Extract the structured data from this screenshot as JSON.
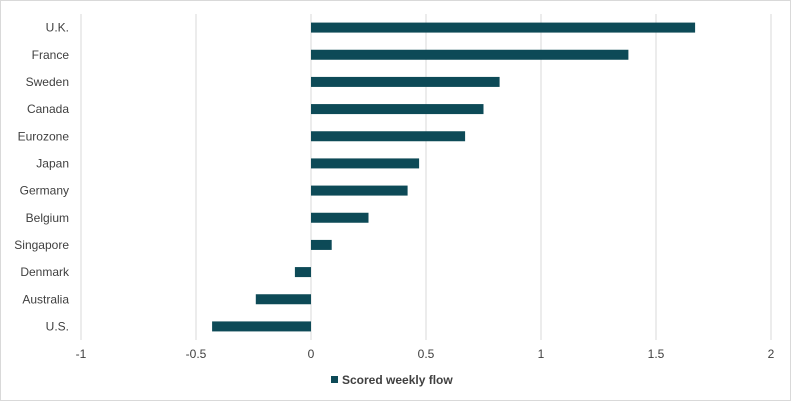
{
  "chart_data": {
    "type": "bar",
    "orientation": "horizontal",
    "categories": [
      "U.K.",
      "France",
      "Sweden",
      "Canada",
      "Eurozone",
      "Japan",
      "Germany",
      "Belgium",
      "Singapore",
      "Denmark",
      "Australia",
      "U.S."
    ],
    "series": [
      {
        "name": "Scored weekly flow",
        "values": [
          1.67,
          1.38,
          0.82,
          0.75,
          0.67,
          0.47,
          0.42,
          0.25,
          0.09,
          -0.07,
          -0.24,
          -0.43
        ],
        "color": "#0d4a57"
      }
    ],
    "xlim": [
      -1,
      2
    ],
    "x_ticks": [
      "-1",
      "-0.5",
      "0",
      "0.5",
      "1",
      "1.5",
      "2"
    ],
    "x_tick_values": [
      -1,
      -0.5,
      0,
      0.5,
      1,
      1.5,
      2
    ],
    "grid": "vertical",
    "legend": "bottom"
  }
}
